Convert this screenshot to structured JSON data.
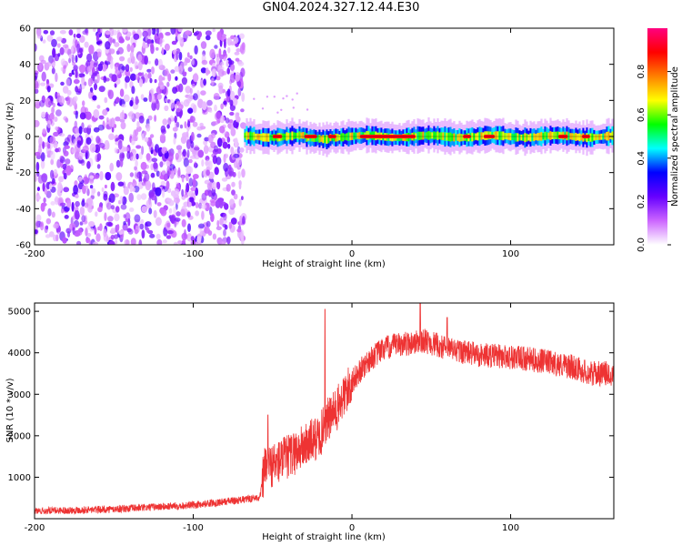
{
  "title": "GN04.2024.327.12.44.E30",
  "chart_data": [
    {
      "type": "heatmap",
      "xlabel": "Height of straight line (km)",
      "ylabel": "Frequency (Hz)",
      "xlim": [
        -200,
        165
      ],
      "ylim": [
        -60,
        60
      ],
      "xticks": [
        -200,
        -100,
        0,
        100
      ],
      "yticks": [
        -60,
        -40,
        -20,
        0,
        20,
        40,
        60
      ],
      "colorbar": {
        "label": "Normalized spectral amplitude",
        "range": [
          0.0,
          1.0
        ],
        "ticks": [
          0.0,
          0.2,
          0.4,
          0.6,
          0.8
        ],
        "colors": [
          "#ffffff",
          "#cc66ff",
          "#6600ff",
          "#0000ff",
          "#00ffff",
          "#00ff00",
          "#ffff00",
          "#ff8000",
          "#ff0000",
          "#ff0080"
        ]
      },
      "regions": [
        {
          "name": "noise",
          "x_range": [
            -200,
            -68
          ],
          "freq_range": [
            -60,
            60
          ]
        },
        {
          "name": "signal_band",
          "x_range": [
            -68,
            165
          ],
          "center_hz": 0,
          "halfwidth_hz": 4
        }
      ]
    },
    {
      "type": "line",
      "xlabel": "Height of straight line (km)",
      "ylabel": "SNR (10 * v/v)",
      "xlim": [
        -200,
        165
      ],
      "ylim": [
        0,
        5200
      ],
      "xticks": [
        -200,
        -100,
        0,
        100
      ],
      "yticks": [
        1000,
        2000,
        3000,
        4000,
        5000
      ],
      "color": "#ee3333",
      "envelope": {
        "x": [
          -200,
          -150,
          -100,
          -70,
          -58,
          -55,
          -40,
          -20,
          -17,
          -10,
          0,
          10,
          20,
          30,
          40,
          45,
          60,
          80,
          100,
          120,
          140,
          150,
          165
        ],
        "y": [
          180,
          230,
          330,
          450,
          520,
          1200,
          1500,
          2000,
          2300,
          2600,
          3300,
          3800,
          4100,
          4200,
          4250,
          4300,
          4100,
          3950,
          3900,
          3800,
          3650,
          3500,
          3500
        ]
      },
      "spikes": [
        {
          "x": -17,
          "y": 5050
        },
        {
          "x": 43,
          "y": 5200
        },
        {
          "x": 60,
          "y": 4850
        },
        {
          "x": -53,
          "y": 2500
        }
      ]
    }
  ]
}
